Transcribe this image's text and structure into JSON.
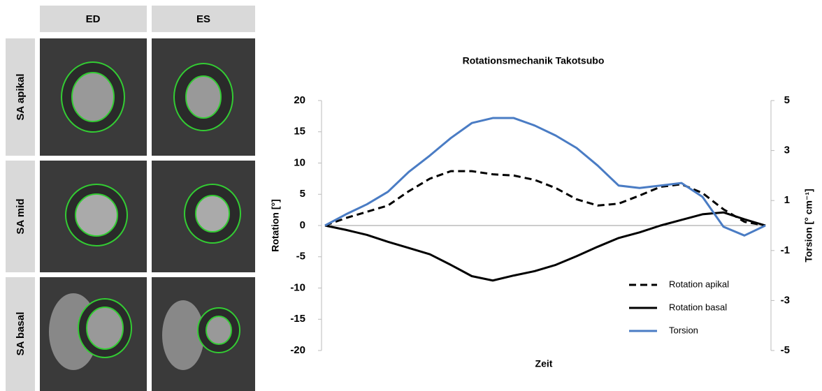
{
  "image_grid": {
    "columns": [
      "ED",
      "ES"
    ],
    "rows": [
      "SA apikal",
      "SA mid",
      "SA basal"
    ]
  },
  "chart_data": {
    "type": "line",
    "title": "Rotationsmechanik Takotsubo",
    "x_label": "Zeit",
    "y_label": "Rotation [°]",
    "y2_label": "Torsion [° cm⁻¹]",
    "categories": [
      null,
      null,
      null,
      null,
      null,
      null,
      null,
      null,
      null,
      null,
      null,
      null,
      null,
      null,
      null,
      null,
      null,
      null,
      null,
      null,
      null,
      null
    ],
    "series": [
      {
        "name": "Rotation apikal",
        "color": "#000000",
        "style": "dashed",
        "values": [
          0,
          1.2,
          2.2,
          3.2,
          5.5,
          7.5,
          8.7,
          8.7,
          8.2,
          8.0,
          7.3,
          6.0,
          4.2,
          3.2,
          3.5,
          4.8,
          6.2,
          6.6,
          5.2,
          2.6,
          0.6,
          0
        ]
      },
      {
        "name": "Rotation basal",
        "color": "#000000",
        "style": "solid",
        "values": [
          0,
          -0.7,
          -1.5,
          -2.6,
          -3.6,
          -4.6,
          -6.3,
          -8.1,
          -8.8,
          -8.0,
          -7.3,
          -6.3,
          -4.9,
          -3.4,
          -2.0,
          -1.1,
          0,
          0.9,
          1.8,
          2.1,
          1.0,
          0
        ]
      },
      {
        "name": "Torsion",
        "color": "#4a7cc4",
        "style": "solid",
        "axis": "y2",
        "values": [
          0,
          0.45,
          0.85,
          1.35,
          2.15,
          2.8,
          3.5,
          4.1,
          4.3,
          4.3,
          4.0,
          3.6,
          3.1,
          2.4,
          1.6,
          1.5,
          1.6,
          1.7,
          1.15,
          -0.05,
          -0.4,
          0
        ]
      }
    ],
    "ylim": [
      -20,
      20
    ],
    "yticks": [
      -20,
      -15,
      -10,
      -5,
      0,
      5,
      10,
      15,
      20
    ],
    "y2lim": [
      -5,
      5
    ],
    "y2ticks": [
      -5,
      -3,
      -1,
      1,
      3,
      5
    ],
    "grid": false,
    "legend": "lower right"
  }
}
